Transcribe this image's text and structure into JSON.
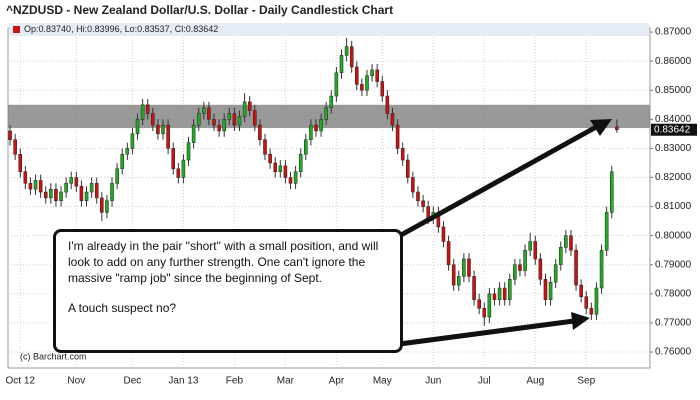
{
  "chart_data": {
    "type": "candlestick",
    "title": "^NZDUSD - New Zealand Dollar/U.S. Dollar - Daily Candlestick Chart",
    "info_prefixes": [
      "Op:",
      ", Hi:",
      ", Lo:",
      ", Cl:"
    ],
    "info_values": [
      "0.83740",
      "0.83996",
      "0.83537",
      "0.83642"
    ],
    "close_label": "0.83642",
    "watermark": "(c) Barchart.com",
    "up_color": "#22aa22",
    "down_color": "#cc1111",
    "band_color": "#808080",
    "resistance_band": [
      0.837,
      0.845
    ],
    "annotation": [
      "I'm already in the pair \"short\" with a small position, and will look to add on any further strength. One can't ignore the massive \"ramp job\" since the beginning of Sept.",
      "A touch suspect no?"
    ],
    "grid": true,
    "xlim": [
      -0.4,
      125.5
    ],
    "xticks": [
      {
        "value": 2,
        "label": "Oct 12"
      },
      {
        "value": 13,
        "label": "Nov"
      },
      {
        "value": 24,
        "label": "Dec"
      },
      {
        "value": 34,
        "label": "Jan 13"
      },
      {
        "value": 44,
        "label": "Feb"
      },
      {
        "value": 54,
        "label": "Mar"
      },
      {
        "value": 64,
        "label": "Apr"
      },
      {
        "value": 73,
        "label": "May"
      },
      {
        "value": 83,
        "label": "Jun"
      },
      {
        "value": 93,
        "label": "Jul"
      },
      {
        "value": 103,
        "label": "Aug"
      },
      {
        "value": 113,
        "label": "Sep"
      }
    ],
    "ylim": [
      0.7545,
      0.8714
    ],
    "yticks": [
      {
        "value": 0.76,
        "label": "0.76000"
      },
      {
        "value": 0.77,
        "label": "0.77000"
      },
      {
        "value": 0.78,
        "label": "0.78000"
      },
      {
        "value": 0.79,
        "label": "0.79000"
      },
      {
        "value": 0.8,
        "label": "0.80000"
      },
      {
        "value": 0.81,
        "label": "0.81000"
      },
      {
        "value": 0.82,
        "label": "0.82000"
      },
      {
        "value": 0.83,
        "label": "0.83000"
      },
      {
        "value": 0.84,
        "label": "0.84000"
      },
      {
        "value": 0.85,
        "label": "0.85000"
      },
      {
        "value": 0.86,
        "label": "0.86000"
      },
      {
        "value": 0.87,
        "label": "0.87000"
      }
    ],
    "open": [
      0.836,
      0.833,
      0.828,
      0.822,
      0.818,
      0.816,
      0.819,
      0.815,
      0.813,
      0.816,
      0.812,
      0.815,
      0.818,
      0.82,
      0.817,
      0.812,
      0.815,
      0.818,
      0.813,
      0.808,
      0.812,
      0.818,
      0.823,
      0.828,
      0.83,
      0.835,
      0.84,
      0.845,
      0.842,
      0.838,
      0.835,
      0.838,
      0.83,
      0.823,
      0.82,
      0.826,
      0.832,
      0.838,
      0.842,
      0.844,
      0.84,
      0.838,
      0.836,
      0.84,
      0.842,
      0.838,
      0.841,
      0.846,
      0.843,
      0.838,
      0.833,
      0.828,
      0.825,
      0.822,
      0.824,
      0.82,
      0.818,
      0.822,
      0.828,
      0.833,
      0.838,
      0.836,
      0.84,
      0.844,
      0.848,
      0.856,
      0.862,
      0.865,
      0.858,
      0.852,
      0.85,
      0.855,
      0.857,
      0.853,
      0.848,
      0.842,
      0.838,
      0.83,
      0.826,
      0.82,
      0.815,
      0.812,
      0.81,
      0.806,
      0.808,
      0.803,
      0.798,
      0.79,
      0.783,
      0.786,
      0.792,
      0.786,
      0.778,
      0.775,
      0.772,
      0.78,
      0.778,
      0.782,
      0.778,
      0.785,
      0.79,
      0.788,
      0.795,
      0.798,
      0.792,
      0.785,
      0.778,
      0.784,
      0.79,
      0.796,
      0.8,
      0.795,
      0.783,
      0.779,
      0.775,
      0.773,
      0.782,
      0.795,
      0.808,
      0.8374
    ],
    "high": [
      0.838,
      0.835,
      0.83,
      0.824,
      0.82,
      0.821,
      0.821,
      0.817,
      0.818,
      0.818,
      0.817,
      0.82,
      0.822,
      0.822,
      0.819,
      0.817,
      0.82,
      0.82,
      0.815,
      0.814,
      0.82,
      0.825,
      0.83,
      0.832,
      0.837,
      0.842,
      0.847,
      0.847,
      0.844,
      0.84,
      0.84,
      0.84,
      0.832,
      0.825,
      0.828,
      0.834,
      0.84,
      0.844,
      0.846,
      0.846,
      0.842,
      0.84,
      0.842,
      0.844,
      0.844,
      0.843,
      0.849,
      0.848,
      0.845,
      0.84,
      0.835,
      0.83,
      0.827,
      0.826,
      0.826,
      0.822,
      0.824,
      0.83,
      0.835,
      0.84,
      0.84,
      0.842,
      0.846,
      0.85,
      0.858,
      0.864,
      0.868,
      0.867,
      0.86,
      0.854,
      0.857,
      0.859,
      0.859,
      0.855,
      0.85,
      0.844,
      0.84,
      0.832,
      0.828,
      0.822,
      0.817,
      0.814,
      0.812,
      0.81,
      0.81,
      0.805,
      0.8,
      0.792,
      0.788,
      0.794,
      0.794,
      0.788,
      0.78,
      0.777,
      0.782,
      0.782,
      0.784,
      0.784,
      0.787,
      0.792,
      0.792,
      0.797,
      0.801,
      0.8,
      0.794,
      0.787,
      0.786,
      0.792,
      0.798,
      0.802,
      0.802,
      0.797,
      0.785,
      0.781,
      0.777,
      0.784,
      0.797,
      0.81,
      0.824,
      0.83996
    ],
    "low": [
      0.831,
      0.826,
      0.82,
      0.816,
      0.814,
      0.814,
      0.813,
      0.811,
      0.811,
      0.81,
      0.81,
      0.813,
      0.816,
      0.815,
      0.81,
      0.81,
      0.813,
      0.811,
      0.805,
      0.806,
      0.81,
      0.816,
      0.821,
      0.826,
      0.828,
      0.833,
      0.838,
      0.84,
      0.836,
      0.833,
      0.833,
      0.828,
      0.821,
      0.818,
      0.818,
      0.824,
      0.83,
      0.836,
      0.84,
      0.838,
      0.836,
      0.834,
      0.834,
      0.838,
      0.836,
      0.836,
      0.839,
      0.841,
      0.836,
      0.831,
      0.826,
      0.823,
      0.82,
      0.82,
      0.818,
      0.816,
      0.816,
      0.82,
      0.826,
      0.831,
      0.834,
      0.834,
      0.838,
      0.842,
      0.846,
      0.854,
      0.86,
      0.856,
      0.85,
      0.848,
      0.848,
      0.853,
      0.851,
      0.846,
      0.84,
      0.836,
      0.828,
      0.824,
      0.818,
      0.813,
      0.81,
      0.808,
      0.804,
      0.804,
      0.801,
      0.796,
      0.788,
      0.781,
      0.781,
      0.784,
      0.784,
      0.776,
      0.773,
      0.769,
      0.77,
      0.776,
      0.776,
      0.776,
      0.776,
      0.783,
      0.786,
      0.786,
      0.793,
      0.79,
      0.783,
      0.776,
      0.776,
      0.782,
      0.788,
      0.794,
      0.793,
      0.781,
      0.777,
      0.773,
      0.771,
      0.771,
      0.78,
      0.793,
      0.806,
      0.83537
    ],
    "close": [
      0.833,
      0.828,
      0.822,
      0.818,
      0.816,
      0.819,
      0.815,
      0.813,
      0.816,
      0.812,
      0.815,
      0.818,
      0.82,
      0.817,
      0.812,
      0.815,
      0.818,
      0.813,
      0.808,
      0.812,
      0.818,
      0.823,
      0.828,
      0.83,
      0.835,
      0.84,
      0.845,
      0.842,
      0.838,
      0.835,
      0.838,
      0.83,
      0.823,
      0.82,
      0.826,
      0.832,
      0.838,
      0.842,
      0.844,
      0.84,
      0.838,
      0.836,
      0.84,
      0.842,
      0.838,
      0.841,
      0.846,
      0.843,
      0.838,
      0.833,
      0.828,
      0.825,
      0.822,
      0.824,
      0.82,
      0.818,
      0.822,
      0.828,
      0.833,
      0.838,
      0.836,
      0.84,
      0.844,
      0.848,
      0.856,
      0.862,
      0.865,
      0.858,
      0.852,
      0.85,
      0.855,
      0.857,
      0.853,
      0.848,
      0.842,
      0.838,
      0.83,
      0.826,
      0.82,
      0.815,
      0.812,
      0.81,
      0.806,
      0.808,
      0.803,
      0.798,
      0.79,
      0.783,
      0.786,
      0.792,
      0.786,
      0.778,
      0.775,
      0.772,
      0.78,
      0.778,
      0.782,
      0.778,
      0.785,
      0.79,
      0.788,
      0.795,
      0.798,
      0.792,
      0.785,
      0.778,
      0.784,
      0.79,
      0.796,
      0.8,
      0.795,
      0.783,
      0.779,
      0.775,
      0.773,
      0.782,
      0.795,
      0.808,
      0.822,
      0.83642
    ]
  }
}
